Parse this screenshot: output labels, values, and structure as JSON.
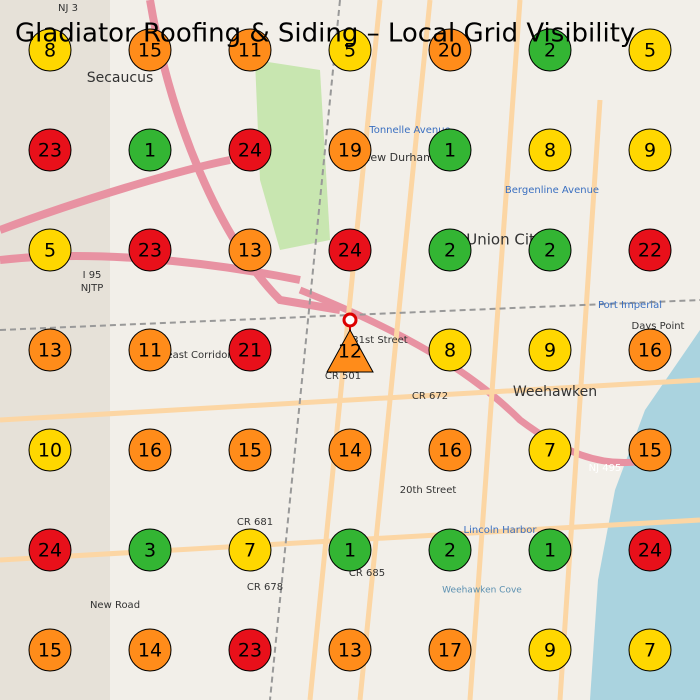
{
  "title": "Gladiator Roofing & Siding – Local Grid Visibility",
  "grid": {
    "rows": [
      [
        {
          "rank": 8,
          "color": "#ffd700"
        },
        {
          "rank": 15,
          "color": "#ff8c1a"
        },
        {
          "rank": 11,
          "color": "#ff8c1a"
        },
        {
          "rank": 5,
          "color": "#ffd700"
        },
        {
          "rank": 20,
          "color": "#ff8c1a"
        },
        {
          "rank": 2,
          "color": "#33b533"
        },
        {
          "rank": 5,
          "color": "#ffd700"
        }
      ],
      [
        {
          "rank": 23,
          "color": "#e8101a"
        },
        {
          "rank": 1,
          "color": "#33b533"
        },
        {
          "rank": 24,
          "color": "#e8101a"
        },
        {
          "rank": 19,
          "color": "#ff8c1a"
        },
        {
          "rank": 1,
          "color": "#33b533"
        },
        {
          "rank": 8,
          "color": "#ffd700"
        },
        {
          "rank": 9,
          "color": "#ffd700"
        }
      ],
      [
        {
          "rank": 5,
          "color": "#ffd700"
        },
        {
          "rank": 23,
          "color": "#e8101a"
        },
        {
          "rank": 13,
          "color": "#ff8c1a"
        },
        {
          "rank": 24,
          "color": "#e8101a"
        },
        {
          "rank": 2,
          "color": "#33b533"
        },
        {
          "rank": 2,
          "color": "#33b533"
        },
        {
          "rank": 22,
          "color": "#e8101a"
        }
      ],
      [
        {
          "rank": 13,
          "color": "#ff8c1a"
        },
        {
          "rank": 11,
          "color": "#ff8c1a"
        },
        {
          "rank": 21,
          "color": "#e8101a"
        },
        {
          "rank": 12,
          "color": "#ff8c1a",
          "shape": "triangle"
        },
        {
          "rank": 8,
          "color": "#ffd700"
        },
        {
          "rank": 9,
          "color": "#ffd700"
        },
        {
          "rank": 16,
          "color": "#ff8c1a"
        }
      ],
      [
        {
          "rank": 10,
          "color": "#ffd700"
        },
        {
          "rank": 16,
          "color": "#ff8c1a"
        },
        {
          "rank": 15,
          "color": "#ff8c1a"
        },
        {
          "rank": 14,
          "color": "#ff8c1a"
        },
        {
          "rank": 16,
          "color": "#ff8c1a"
        },
        {
          "rank": 7,
          "color": "#ffd700"
        },
        {
          "rank": 15,
          "color": "#ff8c1a"
        }
      ],
      [
        {
          "rank": 24,
          "color": "#e8101a"
        },
        {
          "rank": 3,
          "color": "#33b533"
        },
        {
          "rank": 7,
          "color": "#ffd700"
        },
        {
          "rank": 1,
          "color": "#33b533"
        },
        {
          "rank": 2,
          "color": "#33b533"
        },
        {
          "rank": 1,
          "color": "#33b533"
        },
        {
          "rank": 24,
          "color": "#e8101a"
        }
      ],
      [
        {
          "rank": 15,
          "color": "#ff8c1a"
        },
        {
          "rank": 14,
          "color": "#ff8c1a"
        },
        {
          "rank": 23,
          "color": "#e8101a"
        },
        {
          "rank": 13,
          "color": "#ff8c1a"
        },
        {
          "rank": 17,
          "color": "#ff8c1a"
        },
        {
          "rank": 9,
          "color": "#ffd700"
        },
        {
          "rank": 7,
          "color": "#ffd700"
        }
      ]
    ]
  },
  "map_labels": [
    "Secaucus",
    "Union City",
    "New Durham",
    "Weehawken",
    "Tonnelle Avenue",
    "Bergenline Avenue",
    "Port Imperial",
    "Days Point",
    "Lincoln Harbor",
    "Weehawken Cove",
    "CR 501",
    "CR 672",
    "CR 681",
    "CR 678",
    "CR 685",
    "NJ 495",
    "I 95",
    "NJTP",
    "NJ 3",
    "31st Street",
    "Northeast Corridor",
    "20th Street",
    "New Road"
  ]
}
